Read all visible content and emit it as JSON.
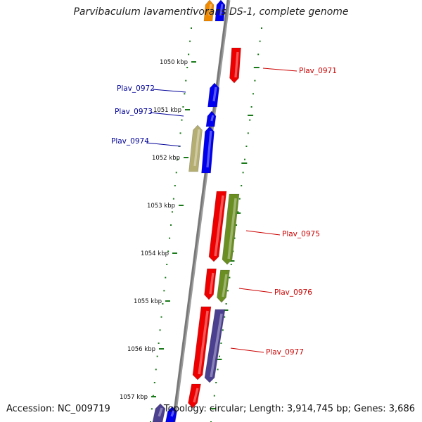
{
  "title": "Parvibaculum lavamentivorans DS-1, complete genome",
  "footer": {
    "accession": "Accession: NC_009719",
    "summary": "Topology: circular; Length: 3,914,745 bp; Genes: 3,686"
  },
  "colors": {
    "backbone": "#777777",
    "tick": "#1a7a1a",
    "label_forward": "#cc0000",
    "label_reverse": "#000099",
    "red": "#ee0000",
    "blue": "#0000ee",
    "olive": "#6b8e23",
    "khaki": "#b5ae72",
    "slate": "#4b3f8f",
    "orange": "#f08a00"
  },
  "ticks": [
    {
      "label": "1050 kbp"
    },
    {
      "label": "1051 kbp"
    },
    {
      "label": "1052 kbp"
    },
    {
      "label": "1053 kbp"
    },
    {
      "label": "1054 kbp"
    },
    {
      "label": "1055 kbp"
    },
    {
      "label": "1056 kbp"
    },
    {
      "label": "1057 kbp"
    }
  ],
  "gene_labels": [
    {
      "text": "Plav_0971",
      "strand": "forward"
    },
    {
      "text": "Plav_0972",
      "strand": "reverse"
    },
    {
      "text": "Plav_0973",
      "strand": "reverse"
    },
    {
      "text": "Plav_0974",
      "strand": "reverse"
    },
    {
      "text": "Plav_0975",
      "strand": "forward"
    },
    {
      "text": "Plav_0976",
      "strand": "forward"
    },
    {
      "text": "Plav_0977",
      "strand": "forward"
    }
  ],
  "features": [
    {
      "name": "feature-orange-top",
      "color": "orange",
      "direction": "up"
    },
    {
      "name": "feature-blue-top",
      "color": "blue",
      "direction": "up"
    },
    {
      "name": "feature-red-0971",
      "color": "red",
      "direction": "down"
    },
    {
      "name": "feature-blue-0972",
      "color": "blue",
      "direction": "up"
    },
    {
      "name": "feature-blue-0973",
      "color": "blue",
      "direction": "up"
    },
    {
      "name": "feature-khaki-0974",
      "color": "khaki",
      "direction": "up"
    },
    {
      "name": "feature-blue-0974",
      "color": "blue",
      "direction": "up"
    },
    {
      "name": "feature-red-0975",
      "color": "red",
      "direction": "down"
    },
    {
      "name": "feature-olive-0975",
      "color": "olive",
      "direction": "down"
    },
    {
      "name": "feature-red-0976",
      "color": "red",
      "direction": "down"
    },
    {
      "name": "feature-olive-0976",
      "color": "olive",
      "direction": "down"
    },
    {
      "name": "feature-red-0977",
      "color": "red",
      "direction": "down"
    },
    {
      "name": "feature-slate-0977",
      "color": "slate",
      "direction": "down"
    },
    {
      "name": "feature-red-bottom",
      "color": "red",
      "direction": "down"
    },
    {
      "name": "feature-slate-bottom",
      "color": "slate",
      "direction": "up"
    },
    {
      "name": "feature-blue-bottom",
      "color": "blue",
      "direction": "up"
    }
  ]
}
